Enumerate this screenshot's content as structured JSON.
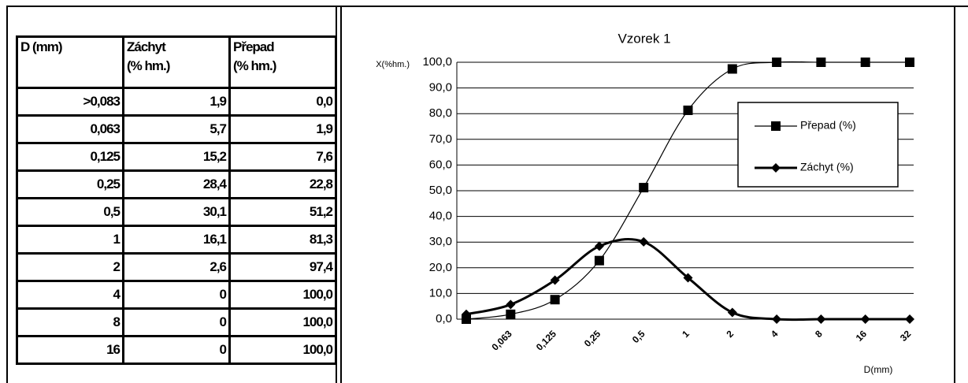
{
  "table": {
    "header": [
      "D (mm)",
      "Záchyt\n(% hm.)",
      "Přepad\n(% hm.)"
    ],
    "rows": [
      [
        ">0,083",
        "1,9",
        "0,0"
      ],
      [
        "0,063",
        "5,7",
        "1,9"
      ],
      [
        "0,125",
        "15,2",
        "7,6"
      ],
      [
        "0,25",
        "28,4",
        "22,8"
      ],
      [
        "0,5",
        "30,1",
        "51,2"
      ],
      [
        "1",
        "16,1",
        "81,3"
      ],
      [
        "2",
        "2,6",
        "97,4"
      ],
      [
        "4",
        "0",
        "100,0"
      ],
      [
        "8",
        "0",
        "100,0"
      ],
      [
        "16",
        "0",
        "100,0"
      ]
    ]
  },
  "chart_data": {
    "type": "line",
    "title": "Vzorek 1",
    "y_label": "X(%hm.)",
    "x_label": "D(mm)",
    "categories": [
      null,
      "0,063",
      "0,125",
      "0,25",
      "0,5",
      "1",
      "2",
      "4",
      "8",
      "16",
      "32"
    ],
    "series": [
      {
        "name": "Přepad (%)",
        "color": "#000000",
        "marker": "square",
        "values": [
          0.0,
          1.9,
          7.6,
          22.8,
          51.2,
          81.3,
          97.4,
          100,
          100,
          100,
          100
        ]
      },
      {
        "name": "Záchyt (%)",
        "color": "#000000",
        "marker": "diamond",
        "values": [
          1.9,
          5.7,
          15.2,
          28.4,
          30.1,
          16.1,
          2.6,
          0,
          0,
          0,
          0
        ]
      }
    ],
    "ylim": [
      0,
      100
    ],
    "yticks": [
      {
        "value": 0,
        "label": "0,0"
      },
      {
        "value": 10,
        "label": "10,0"
      },
      {
        "value": 20,
        "label": "20,0"
      },
      {
        "value": 30,
        "label": "30,0"
      },
      {
        "value": 40,
        "label": "40,0"
      },
      {
        "value": 50,
        "label": "50,0"
      },
      {
        "value": 60,
        "label": "60,0"
      },
      {
        "value": 70,
        "label": "70,0"
      },
      {
        "value": 80,
        "label": "80,0"
      },
      {
        "value": 90,
        "label": "90,0"
      },
      {
        "value": 100,
        "label": "100,0"
      }
    ],
    "grid": true,
    "legend": "right"
  }
}
